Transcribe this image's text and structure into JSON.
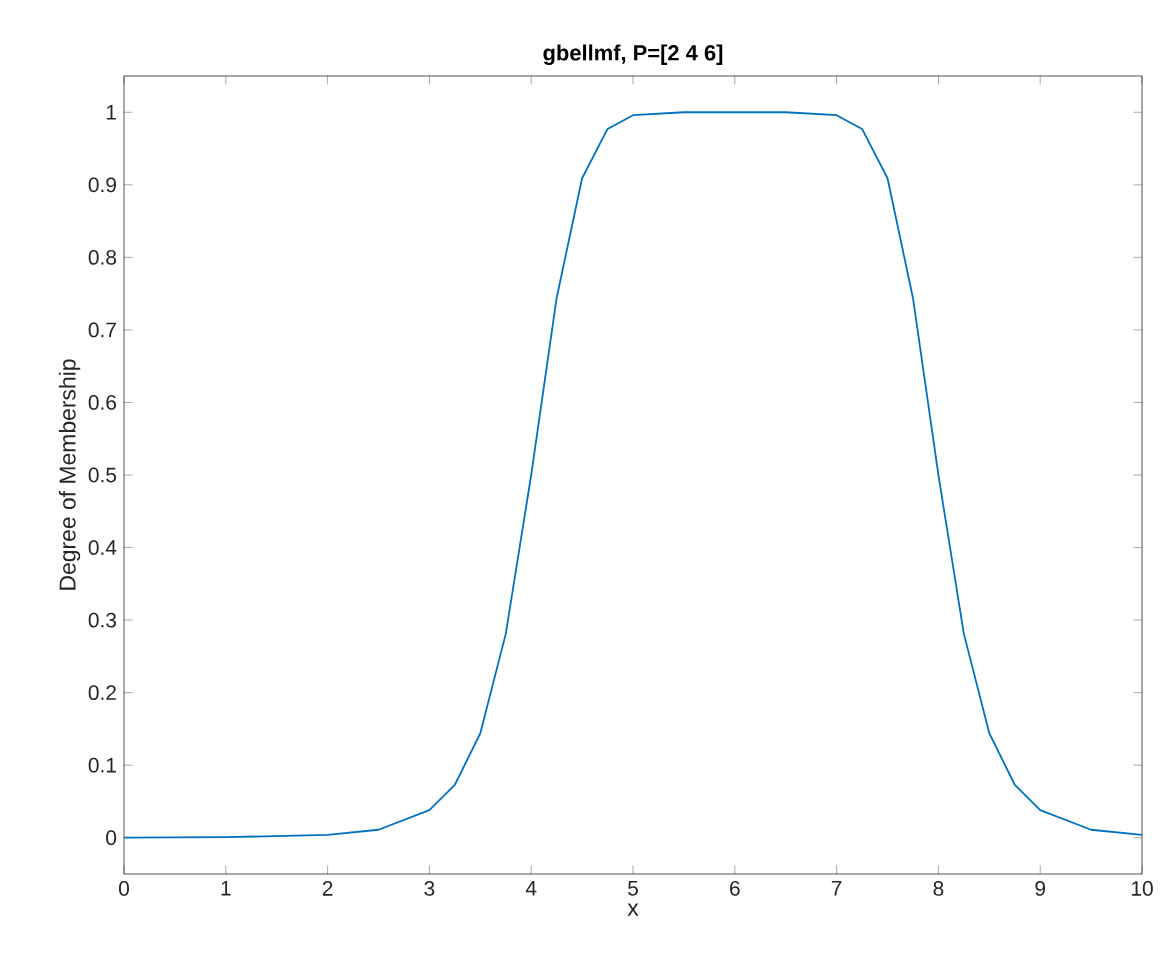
{
  "chart_data": {
    "type": "line",
    "title": "gbellmf, P=[2 4 6]",
    "xlabel": "x",
    "ylabel": "Degree of Membership",
    "xlim": [
      0,
      10
    ],
    "ylim": [
      -0.05,
      1.05
    ],
    "xticks": [
      0,
      1,
      2,
      3,
      4,
      5,
      6,
      7,
      8,
      9,
      10
    ],
    "yticks": [
      0,
      0.1,
      0.2,
      0.3,
      0.4,
      0.5,
      0.6,
      0.7,
      0.8,
      0.9,
      1
    ],
    "series": [
      {
        "color": "#0072bd",
        "x": [
          0,
          1,
          2,
          2.5,
          3,
          3.25,
          3.5,
          3.75,
          4,
          4.25,
          4.5,
          4.75,
          5,
          5.5,
          6,
          6.5,
          7,
          7.25,
          7.5,
          7.75,
          8,
          8.25,
          8.5,
          8.75,
          9,
          9.5,
          10
        ],
        "values": [
          0.0002,
          0.0007,
          0.004,
          0.011,
          0.038,
          0.073,
          0.144,
          0.281,
          0.5,
          0.744,
          0.909,
          0.977,
          0.996,
          1.0,
          1.0,
          1.0,
          0.996,
          0.977,
          0.909,
          0.744,
          0.5,
          0.281,
          0.144,
          0.073,
          0.038,
          0.011,
          0.004
        ]
      }
    ]
  }
}
